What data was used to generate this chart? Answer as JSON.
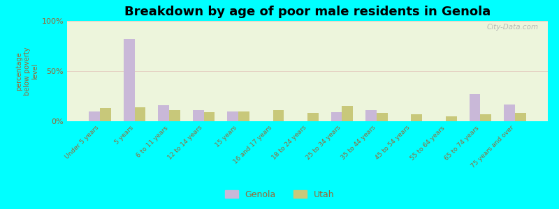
{
  "title": "Breakdown by age of poor male residents in Genola",
  "ylabel": "percentage\nbelow poverty\nlevel",
  "categories": [
    "Under 5 years",
    "5 years",
    "6 to 11 years",
    "12 to 14 years",
    "15 years",
    "16 and 17 years",
    "18 to 24 years",
    "25 to 34 years",
    "35 to 44 years",
    "45 to 54 years",
    "55 to 64 years",
    "65 to 74 years",
    "75 years and over"
  ],
  "genola_values": [
    10,
    82,
    16,
    11,
    10,
    0,
    0,
    9,
    11,
    0,
    0,
    27,
    17
  ],
  "utah_values": [
    13,
    14,
    11,
    9,
    10,
    11,
    8,
    15,
    8,
    7,
    5,
    7,
    8
  ],
  "genola_color": "#c9b8d8",
  "utah_color": "#c8c87a",
  "plot_bg": "#edf5dc",
  "outer_bg": "#00ffff",
  "ylim": [
    0,
    100
  ],
  "yticks": [
    0,
    50,
    100
  ],
  "ytick_labels": [
    "0%",
    "50%",
    "100%"
  ],
  "title_fontsize": 13,
  "legend_labels": [
    "Genola",
    "Utah"
  ],
  "watermark": "City-Data.com",
  "tick_color": "#996633",
  "label_color": "#996633"
}
